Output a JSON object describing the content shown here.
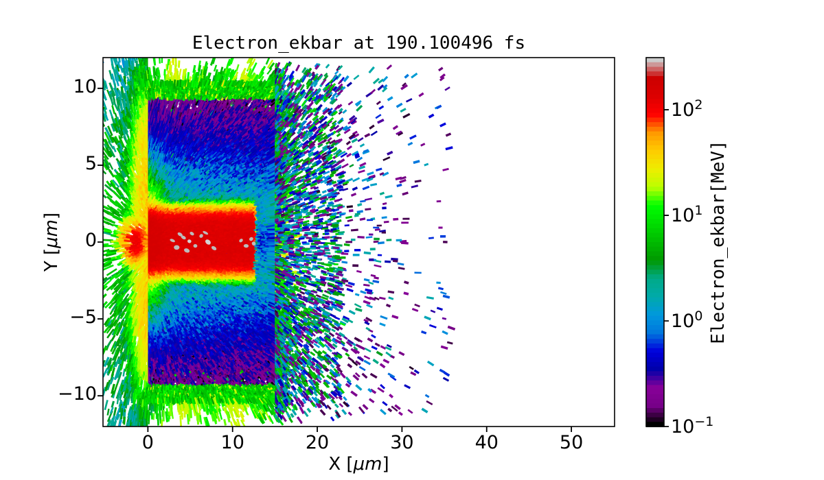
{
  "chart_data": {
    "type": "heatmap",
    "title": "Electron_ekbar at 190.100496 fs",
    "xlabel": "X [μm]",
    "ylabel": "Y [μm]",
    "xlim": [
      -5.3,
      55.1
    ],
    "ylim": [
      -12,
      12
    ],
    "xticks": [
      0,
      10,
      20,
      30,
      40,
      50
    ],
    "yticks": [
      -10,
      -5,
      0,
      5,
      10
    ],
    "grid": false,
    "colorbar": {
      "label": "Electron_ekbar[MeV]",
      "scale": "log",
      "vmin": 0.1,
      "vmax": 312,
      "tick_exponents": [
        -1,
        0,
        1,
        2
      ],
      "colormap": "nipy_spectral"
    },
    "colormap_stops": [
      [
        0.0,
        0,
        0,
        0
      ],
      [
        0.05,
        119,
        0,
        136
      ],
      [
        0.1,
        136,
        0,
        153
      ],
      [
        0.15,
        0,
        0,
        170
      ],
      [
        0.2,
        0,
        0,
        221
      ],
      [
        0.25,
        0,
        119,
        221
      ],
      [
        0.3,
        0,
        153,
        221
      ],
      [
        0.35,
        0,
        170,
        170
      ],
      [
        0.4,
        0,
        170,
        136
      ],
      [
        0.45,
        0,
        153,
        0
      ],
      [
        0.5,
        0,
        187,
        0
      ],
      [
        0.55,
        0,
        221,
        0
      ],
      [
        0.6,
        0,
        255,
        0
      ],
      [
        0.65,
        187,
        255,
        0
      ],
      [
        0.7,
        238,
        238,
        0
      ],
      [
        0.75,
        255,
        204,
        0
      ],
      [
        0.8,
        255,
        153,
        0
      ],
      [
        0.85,
        255,
        0,
        0
      ],
      [
        0.9,
        221,
        0,
        0
      ],
      [
        0.95,
        204,
        0,
        0
      ],
      [
        1.0,
        204,
        204,
        204
      ]
    ],
    "regions": [
      {
        "name": "target-slab",
        "x_um": [
          0,
          15
        ],
        "y_um": [
          -10,
          10
        ],
        "ekbar_MeV": 0.15
      },
      {
        "name": "heated-bulk-glow",
        "x_um": [
          0,
          15
        ],
        "y_um": [
          -6,
          6
        ],
        "ekbar_MeV": 1.5
      },
      {
        "name": "hot-channel",
        "x_um": [
          -1,
          13.2
        ],
        "y_um": [
          -2,
          2
        ],
        "ekbar_MeV": 150
      },
      {
        "name": "saturated-specks",
        "x_um": [
          2.5,
          12.6
        ],
        "y_um": [
          -0.8,
          0.8
        ],
        "ekbar_MeV": 320
      },
      {
        "name": "front-flare",
        "x_um": [
          -1.5,
          2
        ],
        "y_um": [
          -3.5,
          3.5
        ],
        "ekbar_MeV": 30
      },
      {
        "name": "front-spray",
        "x_um": [
          -5.3,
          0
        ],
        "y_um": [
          -11.5,
          11.5
        ],
        "ekbar_MeV": 8
      },
      {
        "name": "edge-sprays",
        "x_um": [
          -1,
          17
        ],
        "y_um": [
          -12,
          12
        ],
        "ekbar_MeV": 6
      },
      {
        "name": "rear-spray",
        "x_um": [
          15,
          36
        ],
        "y_um": [
          -11.5,
          11.5
        ],
        "ekbar_MeV": 1.0
      }
    ],
    "background": "#ffffff",
    "text_color": "#000000"
  }
}
